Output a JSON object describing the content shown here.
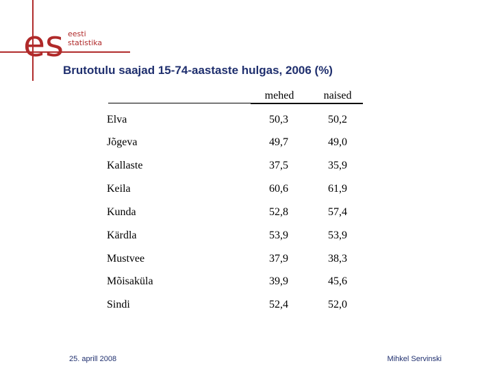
{
  "logo": {
    "mark": "es",
    "line1": "eesti",
    "line2": "statistika",
    "color": "#b02a2a"
  },
  "title": "Brutotulu saajad 15-74-aastaste hulgas, 2006 (%)",
  "table": {
    "columns": [
      "mehed",
      "naised"
    ],
    "rows": [
      {
        "name": "Elva",
        "mehed": "50,3",
        "naised": "50,2"
      },
      {
        "name": "Jõgeva",
        "mehed": "49,7",
        "naised": "49,0"
      },
      {
        "name": "Kallaste",
        "mehed": "37,5",
        "naised": "35,9"
      },
      {
        "name": "Keila",
        "mehed": "60,6",
        "naised": "61,9"
      },
      {
        "name": "Kunda",
        "mehed": "52,8",
        "naised": "57,4"
      },
      {
        "name": "Kärdla",
        "mehed": "53,9",
        "naised": "53,9"
      },
      {
        "name": "Mustvee",
        "mehed": "37,9",
        "naised": "38,3"
      },
      {
        "name": "Mõisaküla",
        "mehed": "39,9",
        "naised": "45,6"
      },
      {
        "name": "Sindi",
        "mehed": "52,4",
        "naised": "52,0"
      }
    ]
  },
  "footer": {
    "date": "25. aprill 2008",
    "author": "Mihkel Servinski"
  },
  "colors": {
    "title": "#1f2f6e",
    "accent": "#b02a2a"
  }
}
